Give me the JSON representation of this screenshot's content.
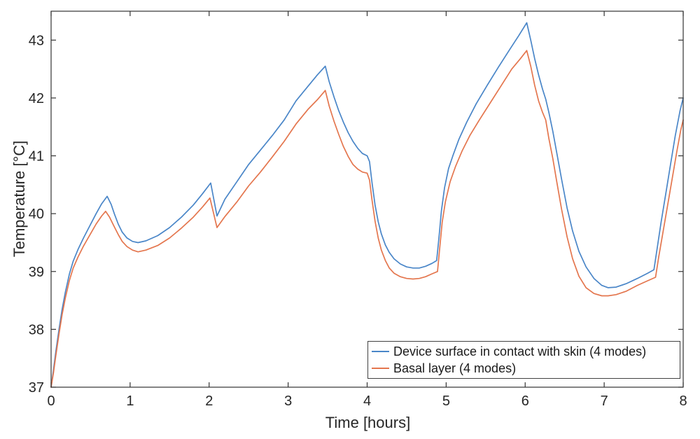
{
  "figure": {
    "background": "#ffffff",
    "axis_color": "#333333",
    "tick_label_color": "#262626",
    "label_color": "#262626",
    "legend_border_color": "#404040"
  },
  "chart_data": {
    "type": "line",
    "title": "",
    "xlabel": "Time [hours]",
    "ylabel": "Temperature [°C]",
    "xlim": [
      0,
      8
    ],
    "ylim": [
      37,
      43.5
    ],
    "xticks": [
      0,
      1,
      2,
      3,
      4,
      5,
      6,
      7,
      8
    ],
    "yticks": [
      37,
      38,
      39,
      40,
      41,
      42,
      43
    ],
    "grid": false,
    "legend_position": "southeast-inside",
    "series": [
      {
        "name": "Device surface in contact with skin (4 modes)",
        "color": "#4a86c8",
        "points": [
          [
            0,
            37
          ],
          [
            0.03,
            37.3
          ],
          [
            0.06,
            37.62
          ],
          [
            0.1,
            38
          ],
          [
            0.14,
            38.35
          ],
          [
            0.18,
            38.64
          ],
          [
            0.23,
            38.95
          ],
          [
            0.28,
            39.18
          ],
          [
            0.34,
            39.38
          ],
          [
            0.41,
            39.58
          ],
          [
            0.49,
            39.79
          ],
          [
            0.57,
            40
          ],
          [
            0.64,
            40.17
          ],
          [
            0.71,
            40.3
          ],
          [
            0.76,
            40.16
          ],
          [
            0.8,
            40
          ],
          [
            0.85,
            39.82
          ],
          [
            0.9,
            39.68
          ],
          [
            0.96,
            39.58
          ],
          [
            1.03,
            39.52
          ],
          [
            1.1,
            39.5
          ],
          [
            1.2,
            39.53
          ],
          [
            1.35,
            39.62
          ],
          [
            1.5,
            39.76
          ],
          [
            1.65,
            39.94
          ],
          [
            1.8,
            40.15
          ],
          [
            1.92,
            40.35
          ],
          [
            2.02,
            40.53
          ],
          [
            2.1,
            39.96
          ],
          [
            2.2,
            40.25
          ],
          [
            2.35,
            40.55
          ],
          [
            2.5,
            40.85
          ],
          [
            2.65,
            41.1
          ],
          [
            2.8,
            41.35
          ],
          [
            2.95,
            41.62
          ],
          [
            3.1,
            41.95
          ],
          [
            3.25,
            42.2
          ],
          [
            3.37,
            42.4
          ],
          [
            3.47,
            42.55
          ],
          [
            3.52,
            42.28
          ],
          [
            3.58,
            42.02
          ],
          [
            3.64,
            41.78
          ],
          [
            3.7,
            41.58
          ],
          [
            3.76,
            41.4
          ],
          [
            3.82,
            41.25
          ],
          [
            3.88,
            41.13
          ],
          [
            3.94,
            41.04
          ],
          [
            4,
            41
          ],
          [
            4.03,
            40.9
          ],
          [
            4.06,
            40.55
          ],
          [
            4.1,
            40.15
          ],
          [
            4.14,
            39.86
          ],
          [
            4.18,
            39.65
          ],
          [
            4.23,
            39.46
          ],
          [
            4.28,
            39.33
          ],
          [
            4.34,
            39.22
          ],
          [
            4.42,
            39.13
          ],
          [
            4.5,
            39.08
          ],
          [
            4.58,
            39.06
          ],
          [
            4.66,
            39.06
          ],
          [
            4.74,
            39.09
          ],
          [
            4.82,
            39.14
          ],
          [
            4.88,
            39.19
          ],
          [
            4.91,
            39.6
          ],
          [
            4.94,
            40.05
          ],
          [
            4.98,
            40.45
          ],
          [
            5.03,
            40.78
          ],
          [
            5.09,
            41.02
          ],
          [
            5.16,
            41.28
          ],
          [
            5.26,
            41.58
          ],
          [
            5.38,
            41.9
          ],
          [
            5.52,
            42.22
          ],
          [
            5.66,
            42.53
          ],
          [
            5.8,
            42.83
          ],
          [
            5.92,
            43.08
          ],
          [
            6.02,
            43.3
          ],
          [
            6.07,
            43
          ],
          [
            6.12,
            42.68
          ],
          [
            6.17,
            42.4
          ],
          [
            6.22,
            42.15
          ],
          [
            6.26,
            41.98
          ],
          [
            6.3,
            41.75
          ],
          [
            6.35,
            41.42
          ],
          [
            6.4,
            41.05
          ],
          [
            6.46,
            40.6
          ],
          [
            6.53,
            40.1
          ],
          [
            6.6,
            39.7
          ],
          [
            6.68,
            39.35
          ],
          [
            6.77,
            39.08
          ],
          [
            6.87,
            38.88
          ],
          [
            6.97,
            38.76
          ],
          [
            7.05,
            38.72
          ],
          [
            7.15,
            38.73
          ],
          [
            7.28,
            38.79
          ],
          [
            7.42,
            38.88
          ],
          [
            7.55,
            38.97
          ],
          [
            7.63,
            39.03
          ],
          [
            7.67,
            39.4
          ],
          [
            7.72,
            39.85
          ],
          [
            7.78,
            40.35
          ],
          [
            7.84,
            40.85
          ],
          [
            7.9,
            41.35
          ],
          [
            7.96,
            41.78
          ],
          [
            8,
            42
          ]
        ]
      },
      {
        "name": "Basal layer (4 modes)",
        "color": "#e4764e",
        "points": [
          [
            0,
            37
          ],
          [
            0.03,
            37.25
          ],
          [
            0.06,
            37.55
          ],
          [
            0.1,
            37.92
          ],
          [
            0.14,
            38.26
          ],
          [
            0.18,
            38.54
          ],
          [
            0.23,
            38.84
          ],
          [
            0.28,
            39.06
          ],
          [
            0.34,
            39.25
          ],
          [
            0.41,
            39.44
          ],
          [
            0.49,
            39.63
          ],
          [
            0.57,
            39.82
          ],
          [
            0.64,
            39.96
          ],
          [
            0.69,
            40.04
          ],
          [
            0.74,
            39.94
          ],
          [
            0.79,
            39.8
          ],
          [
            0.85,
            39.64
          ],
          [
            0.9,
            39.52
          ],
          [
            0.96,
            39.43
          ],
          [
            1.03,
            39.37
          ],
          [
            1.1,
            39.34
          ],
          [
            1.2,
            39.37
          ],
          [
            1.35,
            39.45
          ],
          [
            1.5,
            39.58
          ],
          [
            1.65,
            39.75
          ],
          [
            1.8,
            39.94
          ],
          [
            1.92,
            40.12
          ],
          [
            2.01,
            40.27
          ],
          [
            2.1,
            39.76
          ],
          [
            2.2,
            39.95
          ],
          [
            2.35,
            40.2
          ],
          [
            2.5,
            40.48
          ],
          [
            2.65,
            40.72
          ],
          [
            2.8,
            40.98
          ],
          [
            2.95,
            41.25
          ],
          [
            3.1,
            41.55
          ],
          [
            3.25,
            41.8
          ],
          [
            3.37,
            41.97
          ],
          [
            3.47,
            42.13
          ],
          [
            3.52,
            41.86
          ],
          [
            3.58,
            41.6
          ],
          [
            3.64,
            41.37
          ],
          [
            3.7,
            41.16
          ],
          [
            3.76,
            40.99
          ],
          [
            3.82,
            40.85
          ],
          [
            3.88,
            40.77
          ],
          [
            3.94,
            40.72
          ],
          [
            4,
            40.7
          ],
          [
            4.03,
            40.58
          ],
          [
            4.06,
            40.25
          ],
          [
            4.1,
            39.87
          ],
          [
            4.14,
            39.58
          ],
          [
            4.18,
            39.37
          ],
          [
            4.23,
            39.19
          ],
          [
            4.28,
            39.06
          ],
          [
            4.34,
            38.97
          ],
          [
            4.42,
            38.91
          ],
          [
            4.5,
            38.88
          ],
          [
            4.58,
            38.87
          ],
          [
            4.66,
            38.88
          ],
          [
            4.74,
            38.91
          ],
          [
            4.82,
            38.96
          ],
          [
            4.89,
            39
          ],
          [
            4.92,
            39.42
          ],
          [
            4.95,
            39.85
          ],
          [
            4.99,
            40.2
          ],
          [
            5.05,
            40.55
          ],
          [
            5.12,
            40.82
          ],
          [
            5.2,
            41.08
          ],
          [
            5.3,
            41.35
          ],
          [
            5.42,
            41.62
          ],
          [
            5.56,
            41.92
          ],
          [
            5.7,
            42.22
          ],
          [
            5.83,
            42.5
          ],
          [
            5.94,
            42.68
          ],
          [
            6.02,
            42.82
          ],
          [
            6.07,
            42.55
          ],
          [
            6.12,
            42.22
          ],
          [
            6.17,
            41.95
          ],
          [
            6.22,
            41.75
          ],
          [
            6.26,
            41.62
          ],
          [
            6.3,
            41.3
          ],
          [
            6.35,
            40.95
          ],
          [
            6.4,
            40.55
          ],
          [
            6.46,
            40.08
          ],
          [
            6.53,
            39.6
          ],
          [
            6.6,
            39.22
          ],
          [
            6.68,
            38.92
          ],
          [
            6.77,
            38.72
          ],
          [
            6.87,
            38.62
          ],
          [
            6.97,
            38.58
          ],
          [
            7.05,
            38.58
          ],
          [
            7.15,
            38.6
          ],
          [
            7.28,
            38.66
          ],
          [
            7.42,
            38.76
          ],
          [
            7.55,
            38.84
          ],
          [
            7.65,
            38.9
          ],
          [
            7.69,
            39.25
          ],
          [
            7.74,
            39.65
          ],
          [
            7.8,
            40.12
          ],
          [
            7.86,
            40.6
          ],
          [
            7.92,
            41.08
          ],
          [
            7.97,
            41.45
          ],
          [
            8,
            41.62
          ]
        ]
      }
    ]
  }
}
